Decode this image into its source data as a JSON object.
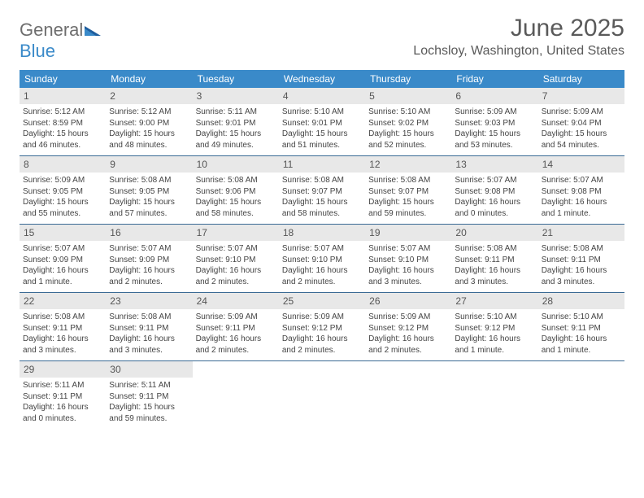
{
  "brand": {
    "part1": "General",
    "part2": "Blue"
  },
  "title": "June 2025",
  "location": "Lochsloy, Washington, United States",
  "colors": {
    "header_bg": "#3a8ac9",
    "header_text": "#ffffff",
    "daybar_bg": "#e8e8e8",
    "daybar_text": "#555555",
    "body_text": "#444444",
    "rule": "#3a6a94",
    "title_text": "#5a5a5a"
  },
  "typography": {
    "title_fontsize": 30,
    "location_fontsize": 16,
    "dow_fontsize": 12,
    "cell_fontsize": 10
  },
  "layout": {
    "columns": 7,
    "rows": 5
  },
  "dow": [
    "Sunday",
    "Monday",
    "Tuesday",
    "Wednesday",
    "Thursday",
    "Friday",
    "Saturday"
  ],
  "days": [
    {
      "n": "1",
      "sunrise": "5:12 AM",
      "sunset": "8:59 PM",
      "daylight": "15 hours and 46 minutes."
    },
    {
      "n": "2",
      "sunrise": "5:12 AM",
      "sunset": "9:00 PM",
      "daylight": "15 hours and 48 minutes."
    },
    {
      "n": "3",
      "sunrise": "5:11 AM",
      "sunset": "9:01 PM",
      "daylight": "15 hours and 49 minutes."
    },
    {
      "n": "4",
      "sunrise": "5:10 AM",
      "sunset": "9:01 PM",
      "daylight": "15 hours and 51 minutes."
    },
    {
      "n": "5",
      "sunrise": "5:10 AM",
      "sunset": "9:02 PM",
      "daylight": "15 hours and 52 minutes."
    },
    {
      "n": "6",
      "sunrise": "5:09 AM",
      "sunset": "9:03 PM",
      "daylight": "15 hours and 53 minutes."
    },
    {
      "n": "7",
      "sunrise": "5:09 AM",
      "sunset": "9:04 PM",
      "daylight": "15 hours and 54 minutes."
    },
    {
      "n": "8",
      "sunrise": "5:09 AM",
      "sunset": "9:05 PM",
      "daylight": "15 hours and 55 minutes."
    },
    {
      "n": "9",
      "sunrise": "5:08 AM",
      "sunset": "9:05 PM",
      "daylight": "15 hours and 57 minutes."
    },
    {
      "n": "10",
      "sunrise": "5:08 AM",
      "sunset": "9:06 PM",
      "daylight": "15 hours and 58 minutes."
    },
    {
      "n": "11",
      "sunrise": "5:08 AM",
      "sunset": "9:07 PM",
      "daylight": "15 hours and 58 minutes."
    },
    {
      "n": "12",
      "sunrise": "5:08 AM",
      "sunset": "9:07 PM",
      "daylight": "15 hours and 59 minutes."
    },
    {
      "n": "13",
      "sunrise": "5:07 AM",
      "sunset": "9:08 PM",
      "daylight": "16 hours and 0 minutes."
    },
    {
      "n": "14",
      "sunrise": "5:07 AM",
      "sunset": "9:08 PM",
      "daylight": "16 hours and 1 minute."
    },
    {
      "n": "15",
      "sunrise": "5:07 AM",
      "sunset": "9:09 PM",
      "daylight": "16 hours and 1 minute."
    },
    {
      "n": "16",
      "sunrise": "5:07 AM",
      "sunset": "9:09 PM",
      "daylight": "16 hours and 2 minutes."
    },
    {
      "n": "17",
      "sunrise": "5:07 AM",
      "sunset": "9:10 PM",
      "daylight": "16 hours and 2 minutes."
    },
    {
      "n": "18",
      "sunrise": "5:07 AM",
      "sunset": "9:10 PM",
      "daylight": "16 hours and 2 minutes."
    },
    {
      "n": "19",
      "sunrise": "5:07 AM",
      "sunset": "9:10 PM",
      "daylight": "16 hours and 3 minutes."
    },
    {
      "n": "20",
      "sunrise": "5:08 AM",
      "sunset": "9:11 PM",
      "daylight": "16 hours and 3 minutes."
    },
    {
      "n": "21",
      "sunrise": "5:08 AM",
      "sunset": "9:11 PM",
      "daylight": "16 hours and 3 minutes."
    },
    {
      "n": "22",
      "sunrise": "5:08 AM",
      "sunset": "9:11 PM",
      "daylight": "16 hours and 3 minutes."
    },
    {
      "n": "23",
      "sunrise": "5:08 AM",
      "sunset": "9:11 PM",
      "daylight": "16 hours and 3 minutes."
    },
    {
      "n": "24",
      "sunrise": "5:09 AM",
      "sunset": "9:11 PM",
      "daylight": "16 hours and 2 minutes."
    },
    {
      "n": "25",
      "sunrise": "5:09 AM",
      "sunset": "9:12 PM",
      "daylight": "16 hours and 2 minutes."
    },
    {
      "n": "26",
      "sunrise": "5:09 AM",
      "sunset": "9:12 PM",
      "daylight": "16 hours and 2 minutes."
    },
    {
      "n": "27",
      "sunrise": "5:10 AM",
      "sunset": "9:12 PM",
      "daylight": "16 hours and 1 minute."
    },
    {
      "n": "28",
      "sunrise": "5:10 AM",
      "sunset": "9:11 PM",
      "daylight": "16 hours and 1 minute."
    },
    {
      "n": "29",
      "sunrise": "5:11 AM",
      "sunset": "9:11 PM",
      "daylight": "16 hours and 0 minutes."
    },
    {
      "n": "30",
      "sunrise": "5:11 AM",
      "sunset": "9:11 PM",
      "daylight": "15 hours and 59 minutes."
    }
  ],
  "labels": {
    "sunrise": "Sunrise: ",
    "sunset": "Sunset: ",
    "daylight": "Daylight: "
  }
}
